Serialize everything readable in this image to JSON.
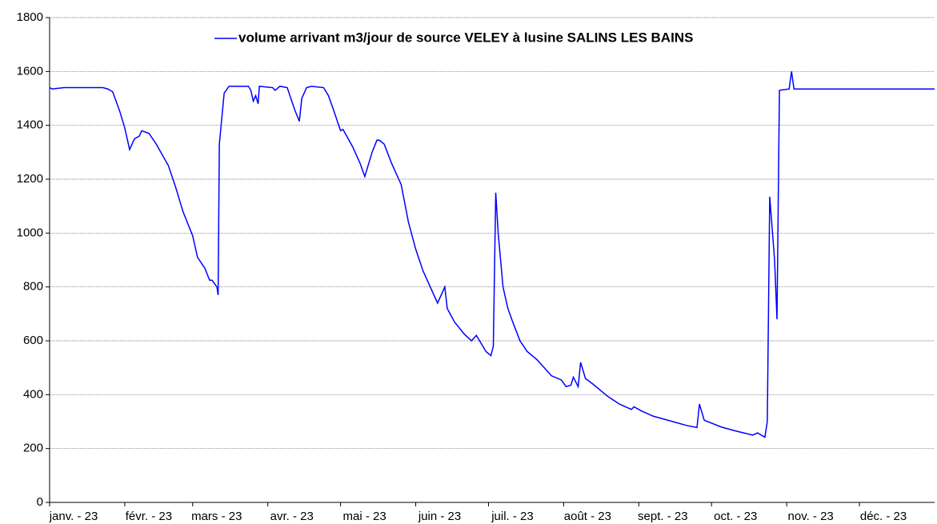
{
  "chart_data": {
    "type": "line",
    "series": [
      {
        "name": "volume arrivant m3/jour de source VELEY à lusine SALINS LES BAINS",
        "color": "#0000ff",
        "x": [
          0,
          1,
          6,
          22,
          24,
          26,
          29,
          31,
          33,
          35,
          37,
          38,
          41,
          44,
          49,
          52,
          55,
          59,
          61,
          64,
          66,
          67,
          69,
          69.5,
          70,
          72,
          74,
          82,
          83,
          84,
          85,
          86,
          86.5,
          92,
          93,
          95,
          98,
          101,
          103,
          104,
          106,
          108,
          113,
          115,
          117,
          120,
          121,
          125,
          128,
          130,
          133,
          135,
          136,
          138,
          141,
          145,
          148,
          151,
          154,
          158,
          160,
          163,
          164,
          167,
          171,
          174,
          176,
          178,
          180,
          182,
          183,
          184,
          185,
          187,
          189,
          191,
          194,
          197,
          201,
          204,
          207,
          211,
          213,
          215,
          216,
          218,
          219,
          221,
          224,
          230,
          235,
          240,
          241,
          244,
          249,
          257,
          263,
          267,
          268,
          270,
          277,
          283,
          290,
          292,
          295,
          296,
          297,
          299,
          300,
          301,
          305,
          306,
          307,
          326,
          343,
          365
        ],
        "values": [
          1540,
          1535,
          1540,
          1540,
          1535,
          1525,
          1450,
          1390,
          1310,
          1350,
          1360,
          1380,
          1370,
          1330,
          1250,
          1170,
          1080,
          990,
          910,
          870,
          825,
          825,
          800,
          770,
          1330,
          1520,
          1545,
          1545,
          1530,
          1490,
          1510,
          1480,
          1545,
          1540,
          1530,
          1545,
          1540,
          1460,
          1415,
          1500,
          1540,
          1545,
          1540,
          1510,
          1460,
          1380,
          1385,
          1320,
          1260,
          1210,
          1300,
          1345,
          1345,
          1330,
          1260,
          1180,
          1040,
          940,
          860,
          780,
          740,
          800,
          720,
          670,
          625,
          600,
          620,
          590,
          560,
          545,
          580,
          1150,
          1000,
          800,
          720,
          670,
          600,
          560,
          530,
          500,
          470,
          455,
          430,
          435,
          465,
          430,
          520,
          460,
          440,
          395,
          365,
          345,
          355,
          340,
          320,
          300,
          285,
          278,
          365,
          305,
          280,
          265,
          250,
          258,
          242,
          300,
          1135,
          900,
          680,
          1530,
          1535,
          1600,
          1535,
          1535,
          1535,
          1535
        ]
      }
    ],
    "xlim": [
      0,
      365
    ],
    "xticks": [
      {
        "value": 0,
        "label": "janv. - 23"
      },
      {
        "value": 31,
        "label": "févr. - 23"
      },
      {
        "value": 59,
        "label": "mars - 23"
      },
      {
        "value": 90,
        "label": "avr. - 23"
      },
      {
        "value": 120,
        "label": "mai - 23"
      },
      {
        "value": 151,
        "label": "juin - 23"
      },
      {
        "value": 181,
        "label": "juil. - 23"
      },
      {
        "value": 212,
        "label": "août - 23"
      },
      {
        "value": 243,
        "label": "sept. - 23"
      },
      {
        "value": 273,
        "label": "oct. - 23"
      },
      {
        "value": 304,
        "label": "nov. - 23"
      },
      {
        "value": 334,
        "label": "déc. - 23"
      }
    ],
    "ylim": [
      0,
      1800
    ],
    "yticks": [
      0,
      200,
      400,
      600,
      800,
      1000,
      1200,
      1400,
      1600,
      1800
    ],
    "grid": true
  }
}
